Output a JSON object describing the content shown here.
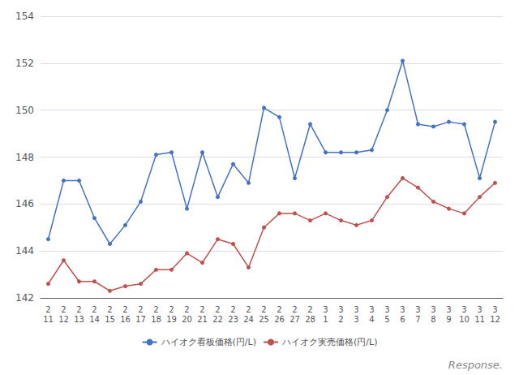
{
  "chart_data": {
    "type": "line",
    "categories": [
      "2\n11",
      "2\n12",
      "2\n13",
      "2\n14",
      "2\n15",
      "2\n16",
      "2\n17",
      "2\n18",
      "2\n19",
      "2\n20",
      "2\n21",
      "2\n22",
      "2\n23",
      "2\n24",
      "2\n25",
      "2\n26",
      "2\n27",
      "2\n28",
      "3\n1",
      "3\n2",
      "3\n3",
      "3\n4",
      "3\n5",
      "3\n6",
      "3\n7",
      "3\n8",
      "3\n9",
      "3\n10",
      "3\n11",
      "3\n12"
    ],
    "series": [
      {
        "name": "ハイオク看板価格(円/L)",
        "color": "#4472C4",
        "values": [
          144.5,
          147.0,
          147.0,
          145.4,
          144.3,
          145.1,
          146.1,
          148.1,
          148.2,
          145.8,
          148.2,
          146.3,
          147.7,
          146.9,
          150.1,
          149.7,
          147.1,
          149.4,
          148.2,
          148.2,
          148.2,
          148.3,
          150.0,
          152.1,
          149.4,
          149.3,
          149.5,
          149.4,
          147.1,
          149.5
        ]
      },
      {
        "name": "ハイオク実売価格(円/L)",
        "color": "#C0504D",
        "values": [
          142.6,
          143.6,
          142.7,
          142.7,
          142.3,
          142.5,
          142.6,
          143.2,
          143.2,
          143.9,
          143.5,
          144.5,
          144.3,
          143.3,
          145.0,
          145.6,
          145.6,
          145.3,
          145.6,
          145.3,
          145.1,
          145.3,
          146.3,
          147.1,
          146.7,
          146.1,
          145.8,
          145.6,
          146.3,
          146.9
        ]
      }
    ],
    "ylim": [
      142,
      154
    ],
    "yticks": [
      142,
      144,
      146,
      148,
      150,
      152,
      154
    ],
    "grid": true,
    "legend": "bottom",
    "marker": "circle",
    "annotation": "Response."
  }
}
